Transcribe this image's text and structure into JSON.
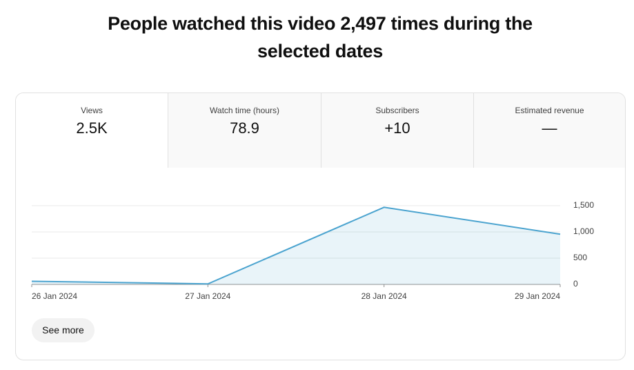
{
  "header": {
    "title": "People watched this video 2,497 times during the selected dates"
  },
  "tabs": [
    {
      "label": "Views",
      "value": "2.5K"
    },
    {
      "label": "Watch time (hours)",
      "value": "78.9"
    },
    {
      "label": "Subscribers",
      "value": "+10"
    },
    {
      "label": "Estimated revenue",
      "value": "—"
    }
  ],
  "chart_data": {
    "type": "area",
    "categories": [
      "26 Jan 2024",
      "27 Jan 2024",
      "28 Jan 2024",
      "29 Jan 2024"
    ],
    "series": [
      {
        "name": "Views",
        "color": "#4aa3cf",
        "values": [
          60,
          10,
          1470,
          957
        ]
      }
    ],
    "ylim": [
      0,
      1500
    ],
    "yticks": [
      0,
      500,
      {
        "value": 1000,
        "label": "1,000"
      },
      {
        "value": 1500,
        "label": "1,500"
      }
    ],
    "grid": true
  },
  "button": {
    "label": "See more"
  }
}
